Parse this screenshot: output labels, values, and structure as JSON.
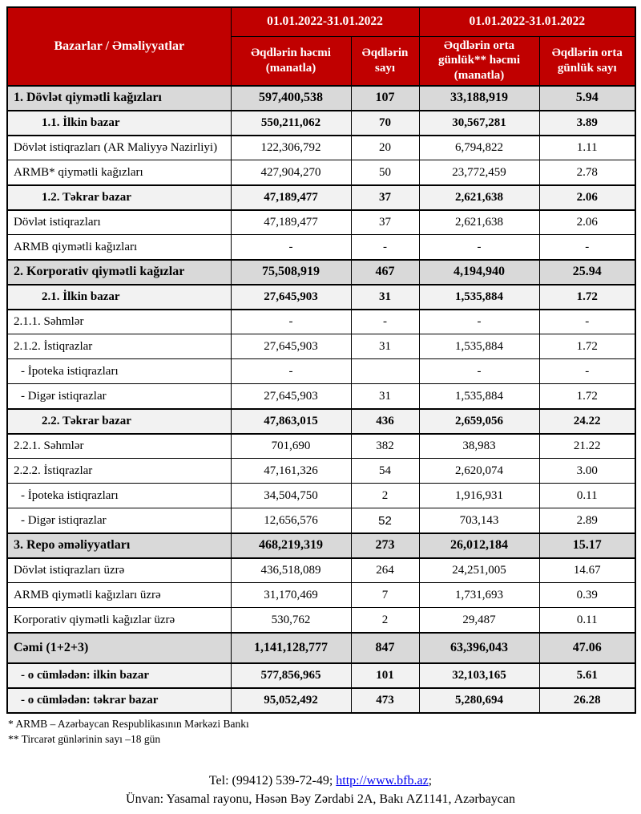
{
  "table": {
    "corner_label": "Bazarlar / Əməliyyatlar",
    "header_color": "#c00000",
    "header_text_color": "#ffffff",
    "section_row_color": "#d9d9d9",
    "subsection_row_color": "#f2f2f2",
    "column_groups": [
      {
        "label": "01.01.2022-31.01.2022",
        "span": 2
      },
      {
        "label": "01.01.2022-31.01.2022",
        "span": 2
      }
    ],
    "columns": [
      "Əqdlərin həcmi (manatla)",
      "Əqdlərin sayı",
      "Əqdlərin orta günlük** həcmi (manatla)",
      "Əqdlərin orta günlük sayı"
    ],
    "rows": [
      {
        "label": "1. Dövlət qiymətli kağızları",
        "type": "section",
        "indent": 0,
        "values": [
          "597,400,538",
          "107",
          "33,188,919",
          "5.94"
        ]
      },
      {
        "label": "1.1. İlkin bazar",
        "type": "subsection",
        "indent": 1,
        "values": [
          "550,211,062",
          "70",
          "30,567,281",
          "3.89"
        ]
      },
      {
        "label": "Dövlət istiqrazları (AR Maliyyə Nazirliyi)",
        "type": "detail",
        "indent": 0,
        "values": [
          "122,306,792",
          "20",
          "6,794,822",
          "1.11"
        ]
      },
      {
        "label": "ARMB* qiymətli kağızları",
        "type": "detail",
        "indent": 0,
        "values": [
          "427,904,270",
          "50",
          "23,772,459",
          "2.78"
        ]
      },
      {
        "label": "1.2. Təkrar bazar",
        "type": "subsection",
        "indent": 1,
        "values": [
          "47,189,477",
          "37",
          "2,621,638",
          "2.06"
        ]
      },
      {
        "label": "Dövlət istiqrazları",
        "type": "detail",
        "indent": 0,
        "values": [
          "47,189,477",
          "37",
          "2,621,638",
          "2.06"
        ]
      },
      {
        "label": "ARMB qiymətli kağızları",
        "type": "detail",
        "indent": 0,
        "values": [
          "-",
          "-",
          "-",
          "-"
        ]
      },
      {
        "label": "2. Korporativ qiymətli kağızlar",
        "type": "section",
        "indent": 0,
        "values": [
          "75,508,919",
          "467",
          "4,194,940",
          "25.94"
        ]
      },
      {
        "label": "2.1. İlkin bazar",
        "type": "subsection",
        "indent": 1,
        "values": [
          "27,645,903",
          "31",
          "1,535,884",
          "1.72"
        ]
      },
      {
        "label": "2.1.1. Səhmlər",
        "type": "detail",
        "indent": 0,
        "values": [
          "-",
          "-",
          "-",
          "-"
        ]
      },
      {
        "label": "2.1.2. İstiqrazlar",
        "type": "detail",
        "indent": 0,
        "values": [
          "27,645,903",
          "31",
          "1,535,884",
          "1.72"
        ]
      },
      {
        "label": "-  İpoteka istiqrazları",
        "type": "detail",
        "indent": 2,
        "values": [
          "-",
          "",
          "-",
          "-"
        ]
      },
      {
        "label": "-  Digər istiqrazlar",
        "type": "detail",
        "indent": 2,
        "values": [
          "27,645,903",
          "31",
          "1,535,884",
          "1.72"
        ]
      },
      {
        "label": "2.2. Təkrar bazar",
        "type": "subsection",
        "indent": 1,
        "values": [
          "47,863,015",
          "436",
          "2,659,056",
          "24.22"
        ]
      },
      {
        "label": "2.2.1. Səhmlər",
        "type": "detail",
        "indent": 0,
        "values": [
          "701,690",
          "382",
          "38,983",
          "21.22"
        ]
      },
      {
        "label": "2.2.2. İstiqrazlar",
        "type": "detail",
        "indent": 0,
        "values": [
          "47,161,326",
          "54",
          "2,620,074",
          "3.00"
        ]
      },
      {
        "label": "-  İpoteka istiqrazları",
        "type": "detail",
        "indent": 2,
        "values": [
          "34,504,750",
          "2",
          "1,916,931",
          "0.11"
        ]
      },
      {
        "label": "-  Digər istiqrazlar",
        "type": "detail",
        "indent": 2,
        "values": [
          "12,656,576",
          "52",
          "703,143",
          "2.89"
        ],
        "large_count": true
      },
      {
        "label": "3. Repo əməliyyatları",
        "type": "section",
        "indent": 0,
        "values": [
          "468,219,319",
          "273",
          "26,012,184",
          "15.17"
        ]
      },
      {
        "label": "Dövlət istiqrazları üzrə",
        "type": "detail",
        "indent": 0,
        "values": [
          "436,518,089",
          "264",
          "24,251,005",
          "14.67"
        ]
      },
      {
        "label": "ARMB qiymətli kağızları üzrə",
        "type": "detail",
        "indent": 0,
        "values": [
          "31,170,469",
          "7",
          "1,731,693",
          "0.39"
        ]
      },
      {
        "label": "Korporativ qiymətli kağızlar üzrə",
        "type": "detail",
        "indent": 0,
        "values": [
          "530,762",
          "2",
          "29,487",
          "0.11"
        ]
      },
      {
        "label": "Cəmi (1+2+3)",
        "type": "total",
        "indent": 0,
        "values": [
          "1,141,128,777",
          "847",
          "63,396,043",
          "47.06"
        ]
      },
      {
        "label": "-  o cümlədən: ilkin bazar",
        "type": "subtotal",
        "indent": 2,
        "values": [
          "577,856,965",
          "101",
          "32,103,165",
          "5.61"
        ]
      },
      {
        "label": "-  o cümlədən: təkrar bazar",
        "type": "subtotal",
        "indent": 2,
        "values": [
          "95,052,492",
          "473",
          "5,280,694",
          "26.28"
        ]
      }
    ]
  },
  "footnotes": [
    "* ARMB – Azərbaycan Respublikasının Mərkəzi Bankı",
    "** Tircarət günlərinin sayı –18 gün"
  ],
  "contact": {
    "tel_prefix": "Tel: (99412) 539-72-49; ",
    "link": "http://www.bfb.az",
    "link_suffix": ";",
    "link_color": "#0000ee",
    "address": "Ünvan: Yasamal rayonu, Həsən Bəy Zərdabi 2A, Bakı AZ1141, Azərbaycan"
  }
}
